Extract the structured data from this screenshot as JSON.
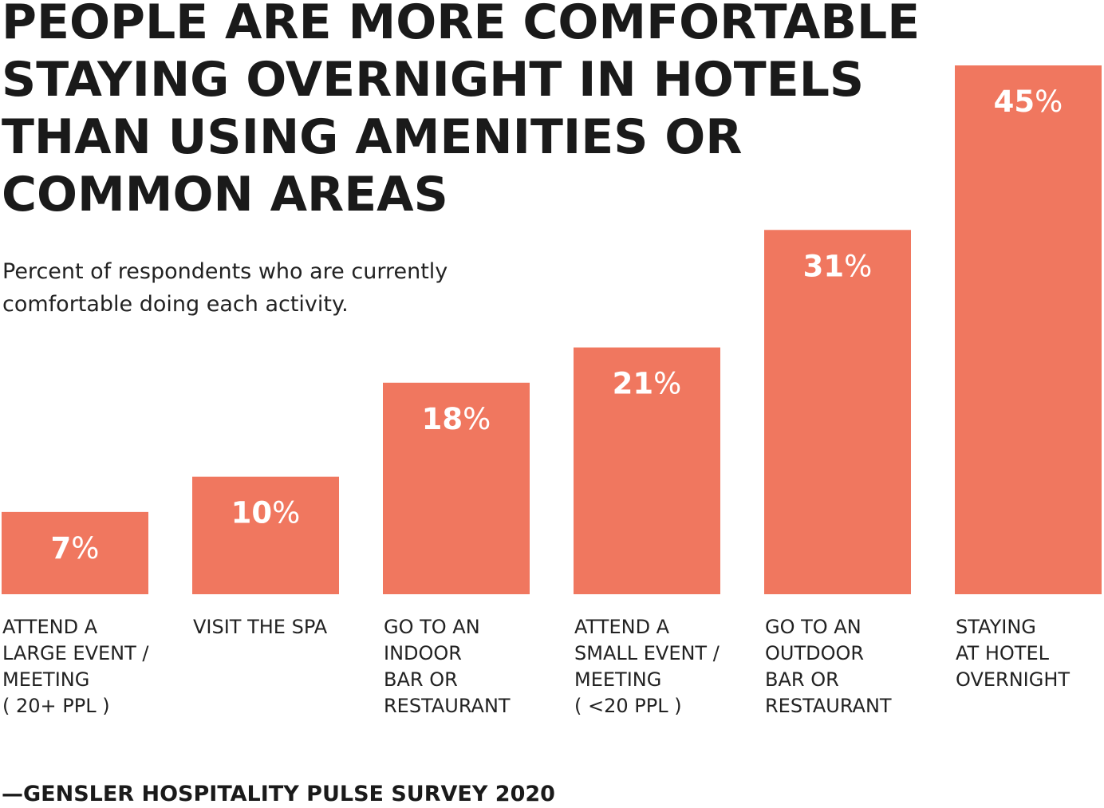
{
  "chart_data": {
    "type": "bar",
    "title_lines": [
      "PEOPLE ARE MORE COMFORTABLE",
      "STAYING OVERNIGHT IN HOTELS",
      "THAN USING AMENITIES OR",
      "COMMON AREAS"
    ],
    "subtitle_lines": [
      "Percent of respondents who are currently",
      "comfortable doing each activity."
    ],
    "categories": [
      [
        "ATTEND A",
        "LARGE EVENT /",
        "MEETING",
        "( 20+ PPL )"
      ],
      [
        "VISIT THE SPA"
      ],
      [
        "GO TO AN",
        "INDOOR",
        "BAR OR",
        "RESTAURANT"
      ],
      [
        "ATTEND A",
        "SMALL EVENT /",
        "MEETING",
        "( <20 PPL )"
      ],
      [
        "GO TO AN",
        "OUTDOOR",
        "BAR OR",
        "RESTAURANT"
      ],
      [
        "STAYING",
        "AT HOTEL",
        "OVERNIGHT"
      ]
    ],
    "values": [
      7,
      10,
      18,
      21,
      31,
      45
    ],
    "value_labels": [
      "7%",
      "10%",
      "18%",
      "21%",
      "31%",
      "45%"
    ],
    "unit": "%",
    "ylim": [
      0,
      45
    ],
    "grid": false,
    "bar_color": "#F0775F",
    "label_color": "#FFFFFF",
    "source": "—GENSLER HOSPITALITY PULSE SURVEY 2020"
  }
}
